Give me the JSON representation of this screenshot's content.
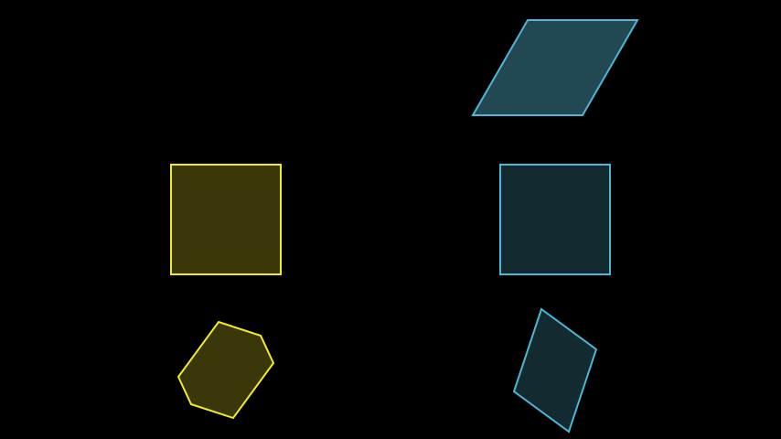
{
  "canvas": {
    "background": "#000000"
  },
  "colors": {
    "yellow_stroke": "#F2EA2E",
    "yellow_fill": "#3A3708",
    "cyan_stroke": "#4DB8D6",
    "cyan_fill_dark": "#132A31",
    "cyan_fill_light": "#214853"
  },
  "shapes": [
    {
      "id": "parallelogram",
      "kind": "parallelogram",
      "group": "cyan",
      "fill": "cyan_fill_light"
    },
    {
      "id": "square-yellow",
      "kind": "square",
      "group": "yellow",
      "fill": "yellow_fill"
    },
    {
      "id": "square-cyan",
      "kind": "square",
      "group": "cyan",
      "fill": "cyan_fill_dark"
    },
    {
      "id": "hexagon",
      "kind": "hexagon",
      "group": "yellow",
      "fill": "yellow_fill"
    },
    {
      "id": "rhombus",
      "kind": "quadrilateral",
      "group": "cyan",
      "fill": "cyan_fill_dark"
    }
  ]
}
